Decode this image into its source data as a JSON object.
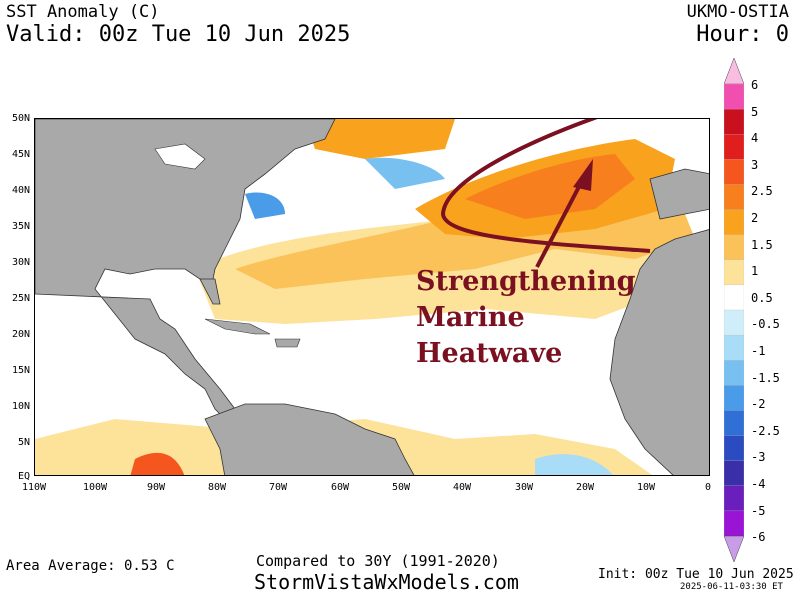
{
  "header": {
    "title": "SST Anomaly (C)",
    "valid": "Valid: 00z Tue 10 Jun 2025",
    "model": "UKMO-OSTIA",
    "hour": "Hour: 0"
  },
  "footer": {
    "area_average": "Area Average: 0.53 C",
    "compared": "Compared to 30Y (1991-2020)",
    "website": "StormVistaWxModels.com",
    "init": "Init: 00z Tue 10 Jun 2025",
    "timestamp": "2025-06-11-03:30 ET"
  },
  "map": {
    "lat_labels": [
      "50N",
      "45N",
      "40N",
      "35N",
      "30N",
      "25N",
      "20N",
      "15N",
      "10N",
      "5N",
      "EQ"
    ],
    "lon_labels": [
      "110W",
      "100W",
      "90W",
      "80W",
      "70W",
      "60W",
      "50W",
      "40W",
      "30W",
      "20W",
      "10W",
      "0"
    ],
    "annotation": [
      "Strengthening",
      "Marine",
      "Heatwave"
    ]
  },
  "colorbar": {
    "labels": [
      "6",
      "5",
      "4",
      "3",
      "2.5",
      "2",
      "1.5",
      "1",
      "0.5",
      "-0.5",
      "-1",
      "-1.5",
      "-2",
      "-2.5",
      "-3",
      "-4",
      "-5",
      "-6"
    ],
    "colors": [
      "#f04fb0",
      "#c8101e",
      "#e01e1e",
      "#f4561e",
      "#f77f1e",
      "#f9a21e",
      "#fbc25a",
      "#fde29a",
      "#ffffff",
      "#cfeefa",
      "#a9dcf6",
      "#77c0ef",
      "#4a9be8",
      "#2f6fd6",
      "#2a4cc0",
      "#3a2fa8",
      "#6a1fbd",
      "#9a14d6"
    ],
    "top_cap_color": "#f8bde0",
    "bottom_cap_color": "#c89ce6"
  }
}
